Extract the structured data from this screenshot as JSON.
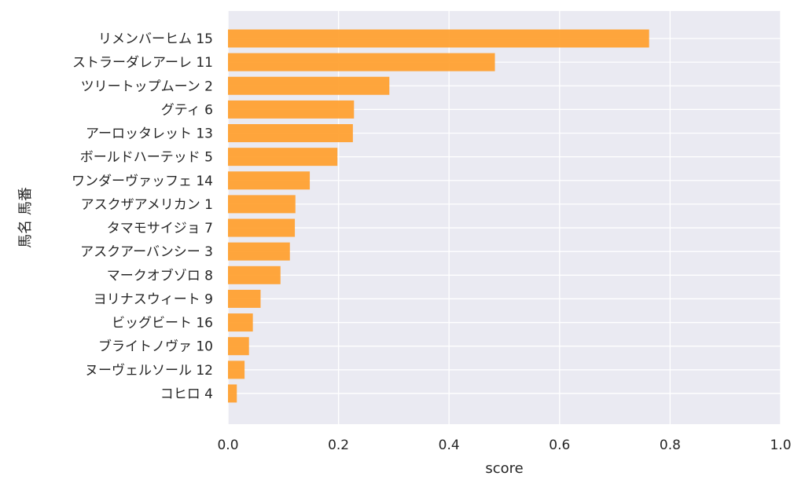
{
  "chart_data": {
    "type": "bar",
    "orientation": "horizontal",
    "xlabel": "score",
    "ylabel": "馬名 馬番",
    "xlim": [
      0.0,
      1.0
    ],
    "x_ticks": [
      "0.0",
      "0.2",
      "0.4",
      "0.6",
      "0.8",
      "1.0"
    ],
    "grid": true,
    "bar_color": "#ff9e2c",
    "background_color": "#eaeaf2",
    "categories": [
      "リメンバーヒム 15",
      "ストラーダレアーレ 11",
      "ツリートップムーン 2",
      "グティ 6",
      "アーロッタレット 13",
      "ボールドハーテッド 5",
      "ワンダーヴァッフェ 14",
      "アスクザアメリカン 1",
      "タマモサイジョ 7",
      "アスクアーバンシー 3",
      "マークオブゾロ 8",
      "ヨリナスウィート 9",
      "ビッグビート 16",
      "ブライトノヴァ 10",
      "ヌーヴェルソール 12",
      "コヒロ 4"
    ],
    "values": [
      0.762,
      0.483,
      0.292,
      0.228,
      0.226,
      0.198,
      0.148,
      0.122,
      0.121,
      0.112,
      0.095,
      0.059,
      0.045,
      0.038,
      0.03,
      0.016
    ]
  }
}
